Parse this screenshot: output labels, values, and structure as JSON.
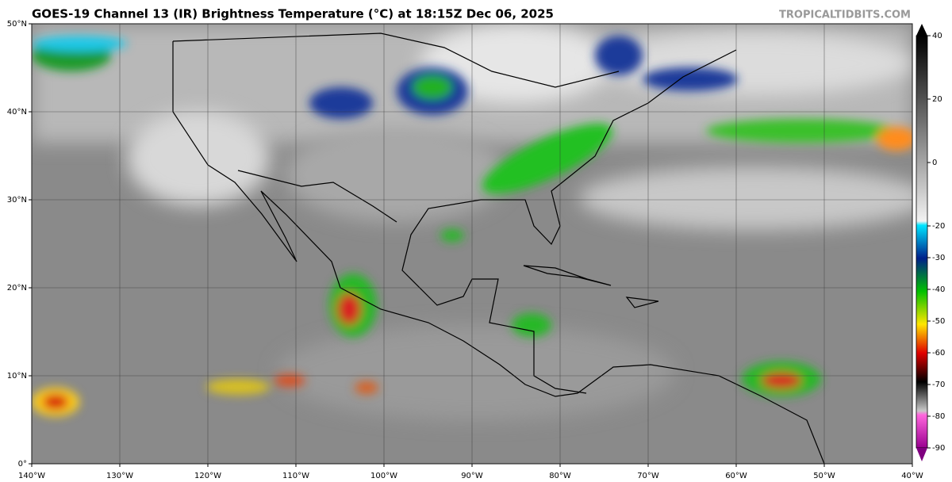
{
  "map": {
    "title": "GOES-19 Channel 13 (IR) Brightness Temperature (°C) at 18:15Z Dec 06, 2025",
    "source": "TROPICALTIDBITS.COM",
    "xlim": [
      -140,
      -40
    ],
    "ylim": [
      0,
      50
    ],
    "xticks": [
      {
        "value": -140,
        "label": "140°W"
      },
      {
        "value": -130,
        "label": "130°W"
      },
      {
        "value": -120,
        "label": "120°W"
      },
      {
        "value": -110,
        "label": "110°W"
      },
      {
        "value": -100,
        "label": "100°W"
      },
      {
        "value": -90,
        "label": "90°W"
      },
      {
        "value": -80,
        "label": "80°W"
      },
      {
        "value": -70,
        "label": "70°W"
      },
      {
        "value": -60,
        "label": "60°W"
      },
      {
        "value": -50,
        "label": "50°W"
      },
      {
        "value": -40,
        "label": "40°W"
      }
    ],
    "yticks": [
      {
        "value": 0,
        "label": "0°"
      },
      {
        "value": 10,
        "label": "10°N"
      },
      {
        "value": 20,
        "label": "20°N"
      },
      {
        "value": 30,
        "label": "30°N"
      },
      {
        "value": 40,
        "label": "40°N"
      },
      {
        "value": 50,
        "label": "50°N"
      }
    ],
    "colorbar": {
      "lim": [
        -90,
        40
      ],
      "ticks": [
        40,
        20,
        0,
        -20,
        -30,
        -40,
        -50,
        -60,
        -70,
        -80,
        -90
      ]
    }
  }
}
